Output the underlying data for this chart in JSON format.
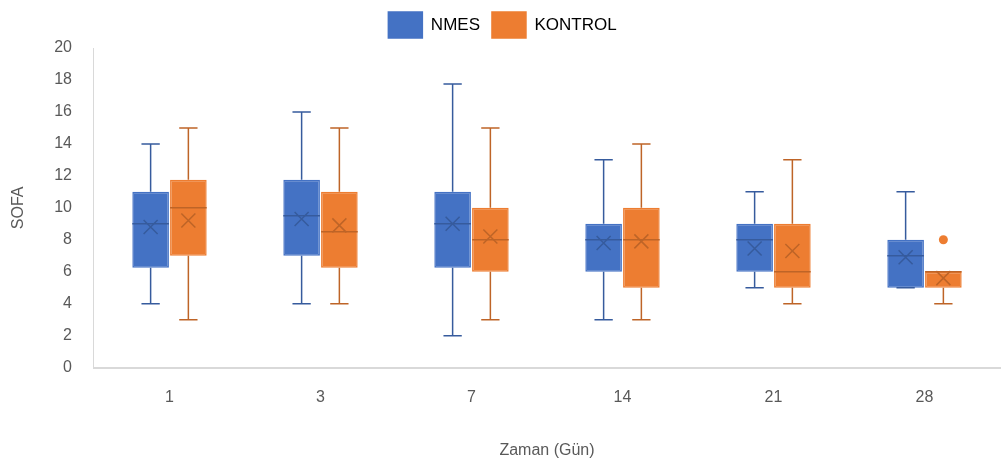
{
  "chart_data": {
    "type": "box",
    "xlabel": "Zaman (Gün)",
    "ylabel": "SOFA",
    "categories": [
      "1",
      "3",
      "7",
      "14",
      "21",
      "28"
    ],
    "ylim": [
      0,
      20
    ],
    "yticks": [
      0,
      2,
      4,
      6,
      8,
      10,
      12,
      14,
      16,
      18,
      20
    ],
    "grid": false,
    "legend": "top",
    "series": [
      {
        "name": "NMES",
        "color": "#4472c4",
        "boxes": [
          {
            "low": 4,
            "q1": 6.25,
            "median": 9,
            "q3": 11,
            "high": 14,
            "mean": 8.8
          },
          {
            "low": 4,
            "q1": 7,
            "median": 9.5,
            "q3": 11.75,
            "high": 16,
            "mean": 9.3
          },
          {
            "low": 2,
            "q1": 6.25,
            "median": 9,
            "q3": 11,
            "high": 17.75,
            "mean": 9
          },
          {
            "low": 3,
            "q1": 6,
            "median": 8,
            "q3": 9,
            "high": 13,
            "mean": 7.8
          },
          {
            "low": 5,
            "q1": 6,
            "median": 8,
            "q3": 9,
            "high": 11,
            "mean": 7.45
          },
          {
            "low": 5,
            "q1": 5,
            "median": 7,
            "q3": 8,
            "high": 11,
            "mean": 6.9
          }
        ]
      },
      {
        "name": "KONTROL",
        "color": "#ed7d31",
        "boxes": [
          {
            "low": 3,
            "q1": 7,
            "median": 10,
            "q3": 11.75,
            "high": 15,
            "mean": 9.2
          },
          {
            "low": 4,
            "q1": 6.25,
            "median": 8.5,
            "q3": 11,
            "high": 15,
            "mean": 8.9
          },
          {
            "low": 3,
            "q1": 6,
            "median": 8,
            "q3": 10,
            "high": 15,
            "mean": 8.2
          },
          {
            "low": 3,
            "q1": 5,
            "median": 8,
            "q3": 10,
            "high": 14,
            "mean": 7.9
          },
          {
            "low": 4,
            "q1": 5,
            "median": 6,
            "q3": 9,
            "high": 13,
            "mean": 7.3
          },
          {
            "low": 4,
            "q1": 5,
            "median": 6,
            "q3": 6,
            "high": 6,
            "mean": 5.6,
            "outliers": [
              8
            ]
          }
        ]
      }
    ]
  }
}
